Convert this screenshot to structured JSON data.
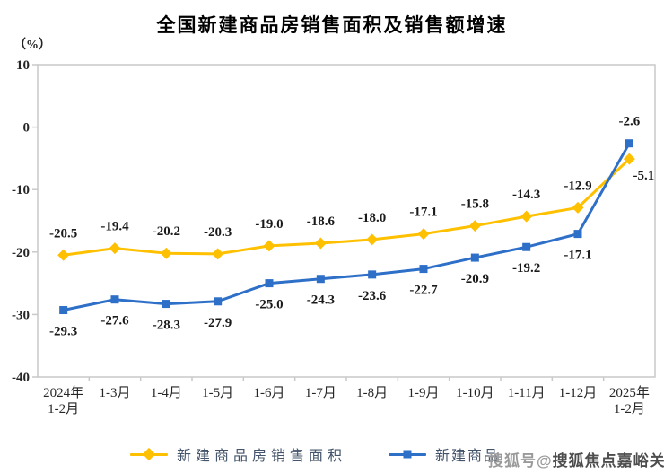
{
  "title": "全国新建商品房销售面积及销售额增速",
  "unit_label": "（%）",
  "legend": [
    {
      "label": "新建商品房销售面积",
      "color": "#FFC000",
      "marker": "diamond"
    },
    {
      "label": "新建商品",
      "color": "#2E6FC8",
      "marker": "square"
    }
  ],
  "watermark": {
    "prefix": "搜狐号@",
    "name": "搜狐焦点嘉峪关站"
  },
  "chart_data": {
    "type": "line",
    "title": "全国新建商品房销售面积及销售额增速",
    "xlabel": "",
    "ylabel": "（%）",
    "ylim": [
      -40,
      10
    ],
    "ytick_step": 10,
    "grid": false,
    "legend_position": "bottom",
    "categories": [
      "2024年\n1-2月",
      "1-3月",
      "1-4月",
      "1-5月",
      "1-6月",
      "1-7月",
      "1-8月",
      "1-9月",
      "1-10月",
      "1-11月",
      "1-12月",
      "2025年\n1-2月"
    ],
    "series": [
      {
        "name": "新建商品房销售面积",
        "color": "#FFC000",
        "marker": "diamond",
        "values": [
          -20.5,
          -19.4,
          -20.2,
          -20.3,
          -19.0,
          -18.6,
          -18.0,
          -17.1,
          -15.8,
          -14.3,
          -12.9,
          -5.1
        ]
      },
      {
        "name": "新建商品",
        "color": "#2E6FC8",
        "marker": "square",
        "values": [
          -29.3,
          -27.6,
          -28.3,
          -27.9,
          -25.0,
          -24.3,
          -23.6,
          -22.7,
          -20.9,
          -19.2,
          -17.1,
          -2.6
        ]
      }
    ]
  }
}
